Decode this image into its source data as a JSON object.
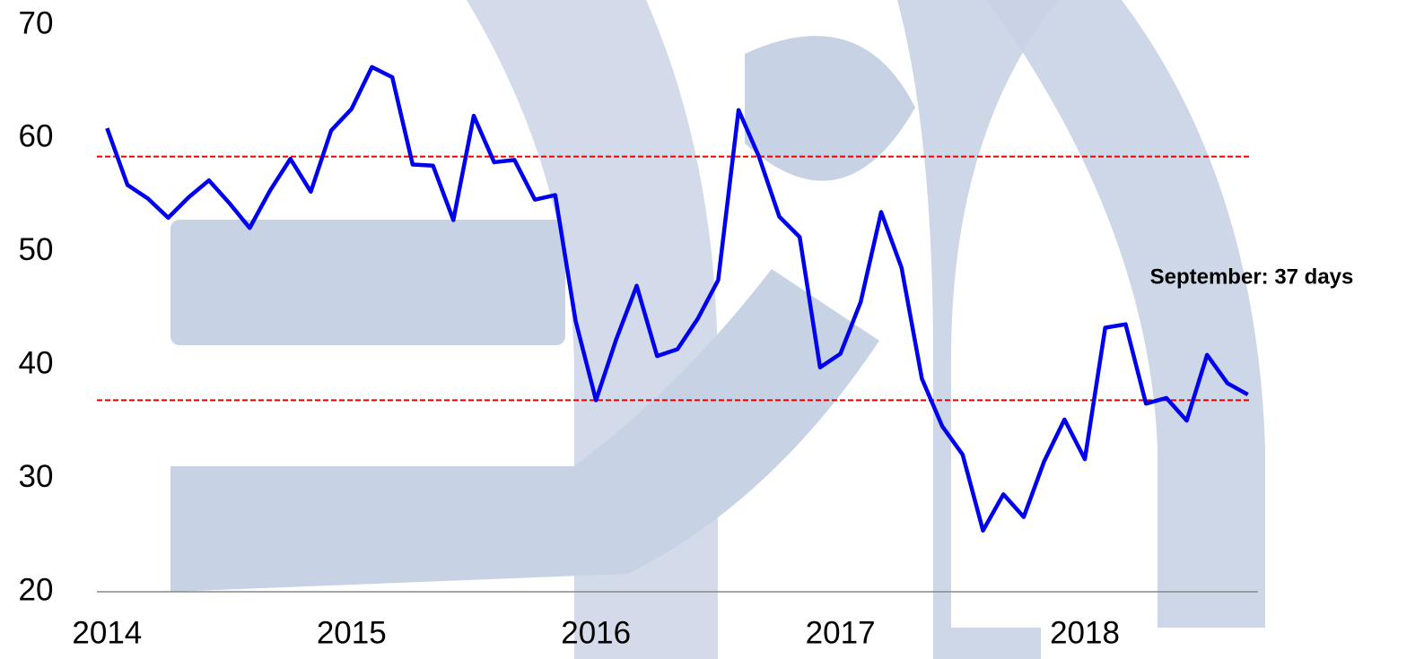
{
  "chart_data": {
    "type": "line",
    "x": [
      0,
      1,
      2,
      3,
      4,
      5,
      6,
      7,
      8,
      9,
      10,
      11,
      12,
      13,
      14,
      15,
      16,
      17,
      18,
      19,
      20,
      21,
      22,
      23,
      24,
      25,
      26,
      27,
      28,
      29,
      30,
      31,
      32,
      33,
      34,
      35,
      36,
      37,
      38,
      39,
      40,
      41,
      42,
      43,
      44,
      45,
      46,
      47,
      48,
      49,
      50,
      51,
      52,
      53,
      54,
      55,
      56
    ],
    "series": [
      {
        "color": "#0000ee",
        "values": [
          60.9,
          55.9,
          54.7,
          53.0,
          54.8,
          56.3,
          54.3,
          52.1,
          55.4,
          58.2,
          55.3,
          60.7,
          62.6,
          66.3,
          65.4,
          57.7,
          57.6,
          52.8,
          62.0,
          57.9,
          58.1,
          54.6,
          55.0,
          43.9,
          36.9,
          42.3,
          47.0,
          40.8,
          41.4,
          44.1,
          47.5,
          62.5,
          58.4,
          53.1,
          51.3,
          39.8,
          41.0,
          45.6,
          53.5,
          48.6,
          38.8,
          34.6,
          32.1,
          25.4,
          28.6,
          26.6,
          31.5,
          35.2,
          31.7,
          43.3,
          43.6,
          36.6,
          37.1,
          35.1,
          40.9,
          38.4,
          37.4
        ]
      }
    ],
    "xlim": [
      -0.5,
      56.5
    ],
    "xticks": [
      {
        "value": 0,
        "label": "2014"
      },
      {
        "value": 12,
        "label": "2015"
      },
      {
        "value": 24,
        "label": "2016"
      },
      {
        "value": 36,
        "label": "2017"
      },
      {
        "value": 48,
        "label": "2018"
      }
    ],
    "ylim": [
      20,
      70
    ],
    "yticks": [
      20,
      30,
      40,
      50,
      60,
      70
    ],
    "reference_lines": [
      {
        "value": 58.4,
        "color": "#ee0000"
      },
      {
        "value": 36.9,
        "color": "#ee0000"
      }
    ],
    "annotation": "September: 37 days"
  }
}
